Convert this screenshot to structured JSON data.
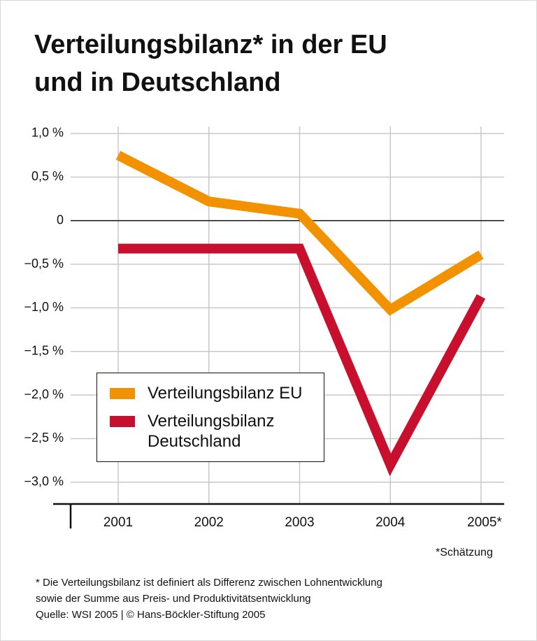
{
  "chart_data": {
    "type": "line",
    "title": [
      "Verteilungsbilanz* in der EU",
      "und in Deutschland"
    ],
    "categories": [
      "2001",
      "2002",
      "2003",
      "2004",
      "2005*"
    ],
    "series": [
      {
        "name": "Verteilungsbilanz EU",
        "color": "#f39200",
        "values": [
          0.75,
          0.22,
          0.08,
          -1.02,
          -0.39
        ]
      },
      {
        "name": "Verteilungsbilanz Deutschland",
        "color": "#c8102e",
        "values": [
          -0.32,
          -0.32,
          -0.32,
          -2.8,
          -0.87
        ]
      }
    ],
    "ylim": [
      -3.25,
      1.1
    ],
    "yticks": [
      {
        "value": 1.0,
        "label": "1,0 %"
      },
      {
        "value": 0.5,
        "label": "0,5 %"
      },
      0,
      {
        "value": -0.5,
        "label": "−0,5 %"
      },
      {
        "value": -1.0,
        "label": "−1,0 %"
      },
      {
        "value": -1.5,
        "label": "−1,5 %"
      },
      {
        "value": -2.0,
        "label": "−2,0 %"
      },
      {
        "value": -2.5,
        "label": "−2,5 %"
      },
      {
        "value": -3.0,
        "label": "−3,0 %"
      }
    ],
    "grid": true,
    "estimate_note": "*Schätzung",
    "footnotes": [
      "* Die Verteilungsbilanz ist definiert als Differenz zwischen Lohnentwicklung",
      "sowie der Summe aus Preis- und Produktivitätsentwicklung",
      "Quelle: WSI 2005 | © Hans-Böckler-Stiftung 2005"
    ]
  }
}
